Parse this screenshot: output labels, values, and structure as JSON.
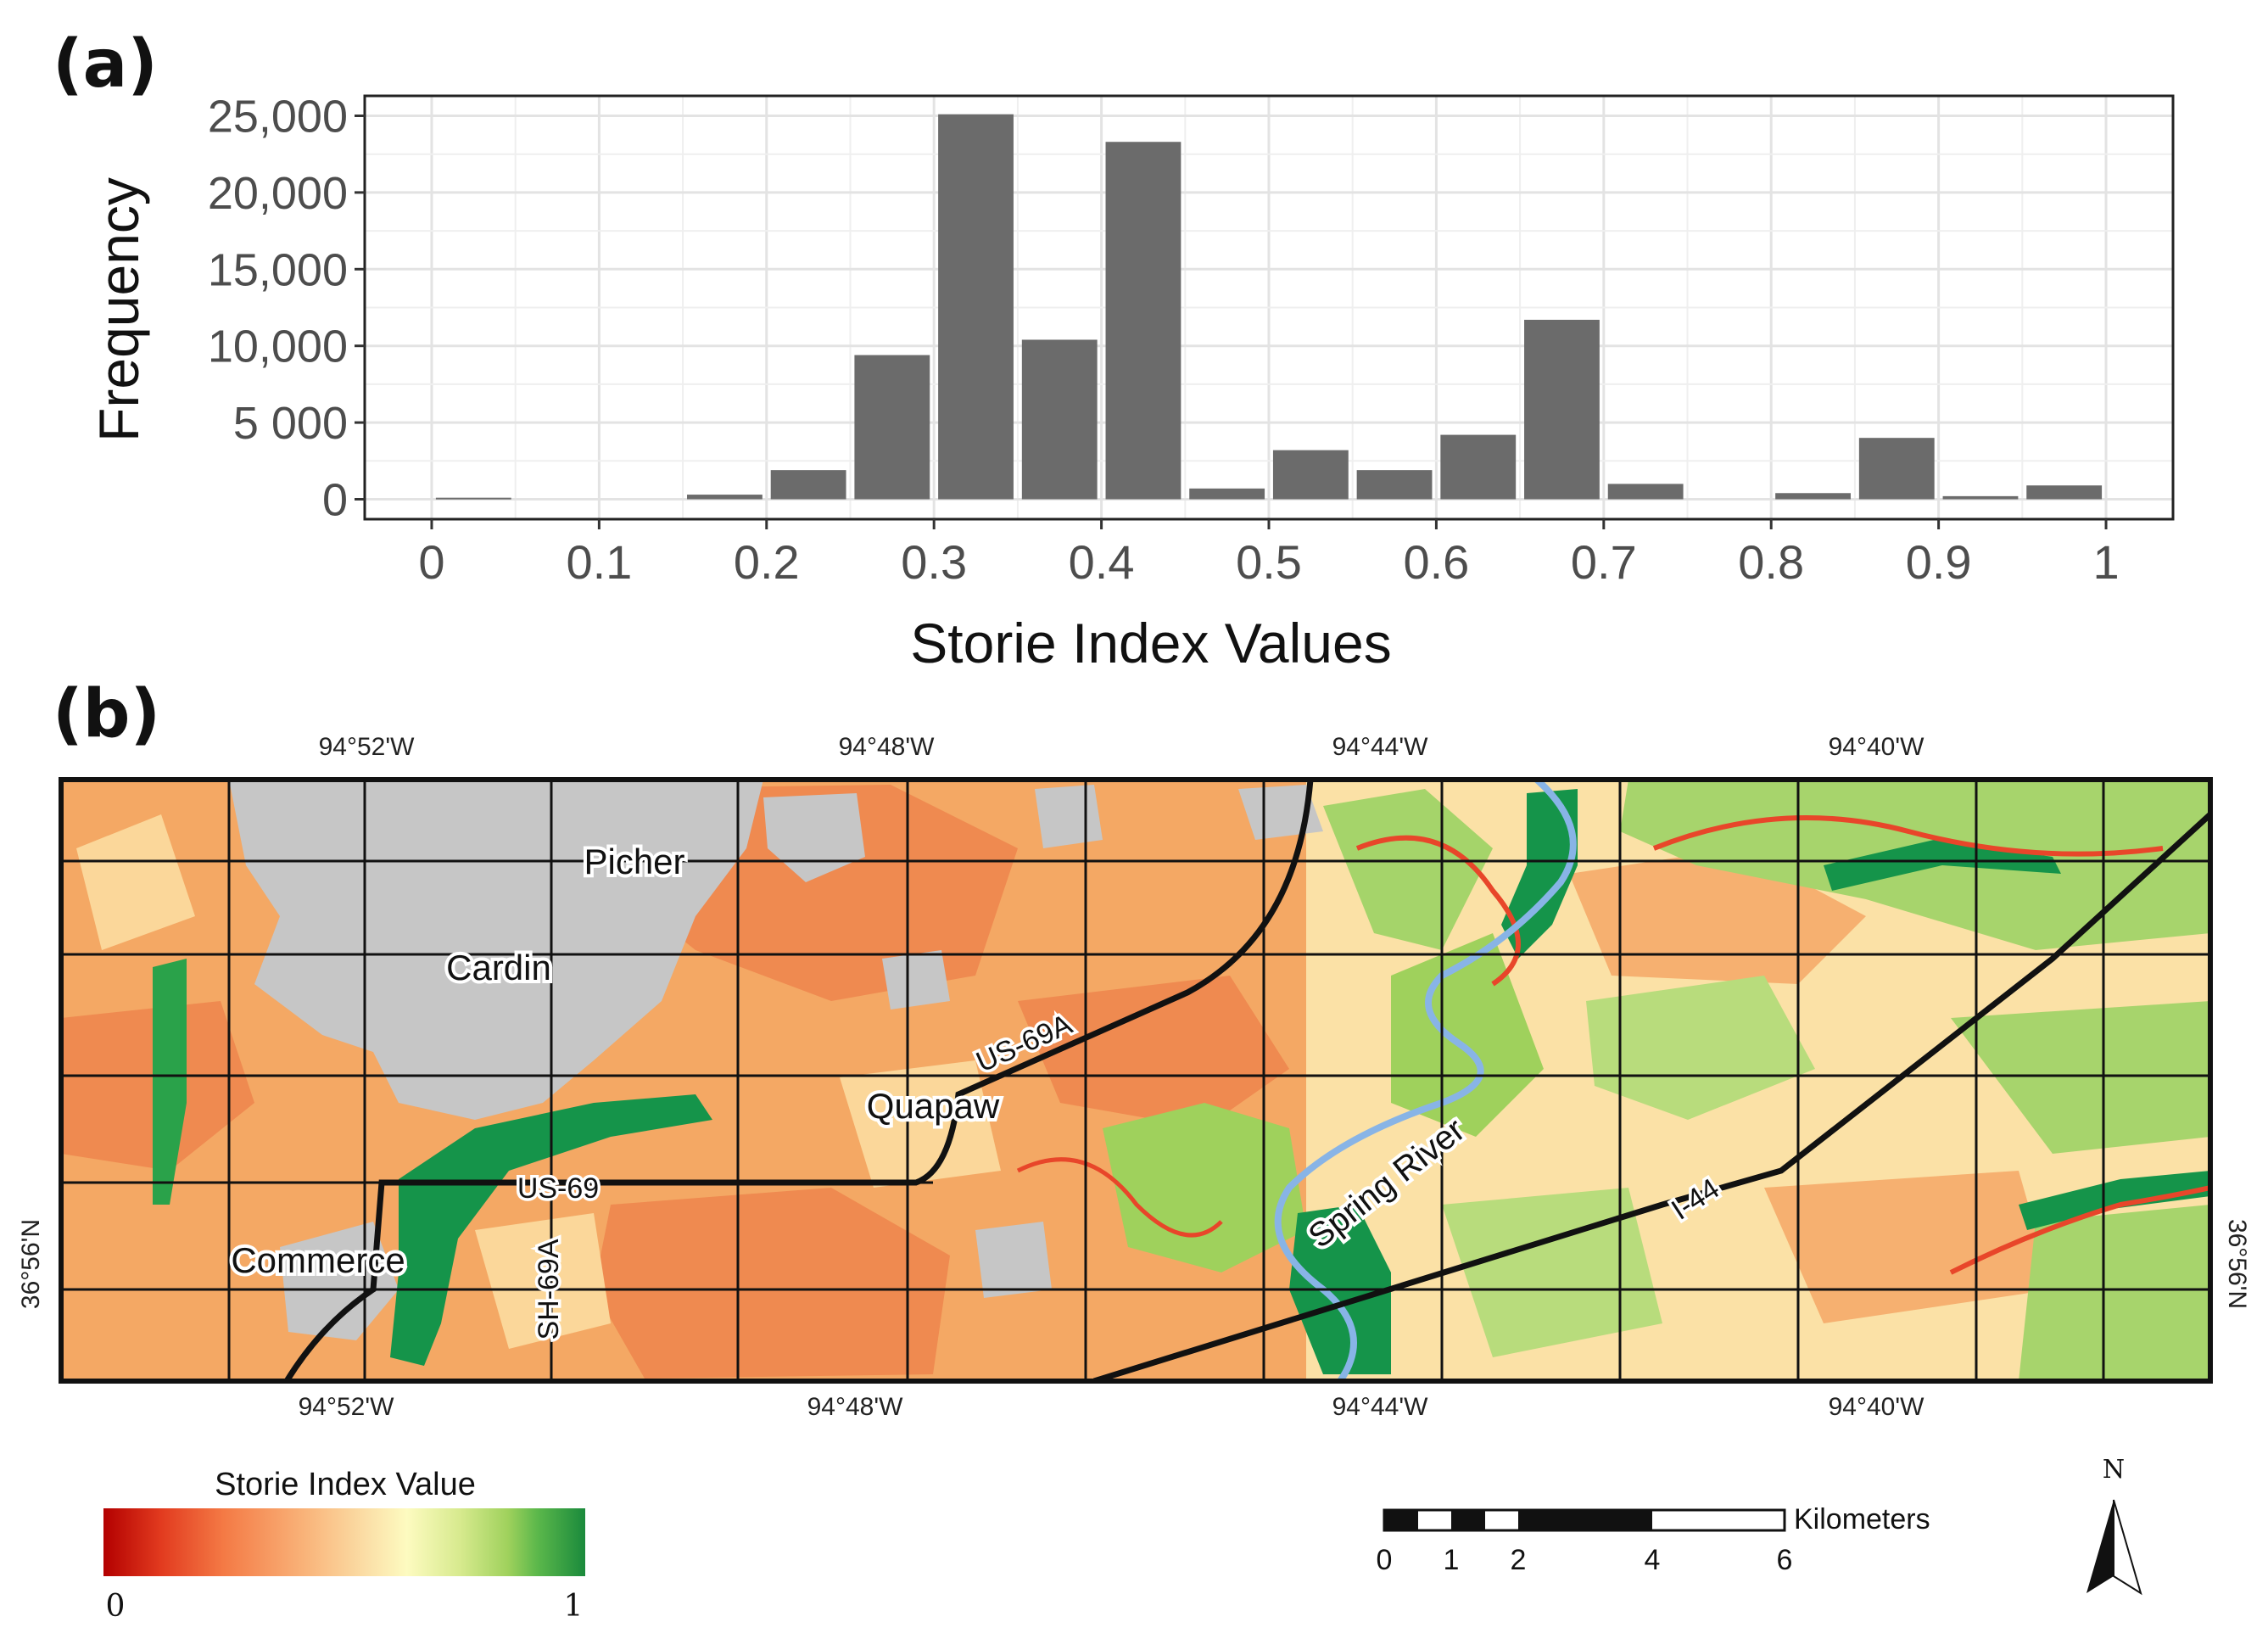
{
  "panels": {
    "a": "(a)",
    "b": "(b)"
  },
  "chart_data": {
    "type": "bar",
    "xlabel": "Storie Index Values",
    "ylabel": "Frequency",
    "xlim": [
      -0.04,
      1.04
    ],
    "ylim": [
      -1300,
      26300
    ],
    "bar_width": 0.045,
    "x": [
      0.025,
      0.075,
      0.125,
      0.175,
      0.225,
      0.275,
      0.325,
      0.375,
      0.425,
      0.475,
      0.525,
      0.575,
      0.625,
      0.675,
      0.725,
      0.775,
      0.825,
      0.875,
      0.925,
      0.975
    ],
    "values": [
      100,
      0,
      0,
      300,
      1900,
      9400,
      25100,
      10400,
      23300,
      700,
      3200,
      1900,
      4200,
      11700,
      1000,
      0,
      400,
      4000,
      200,
      900
    ],
    "xticks": [
      0,
      0.1,
      0.2,
      0.3,
      0.4,
      0.5,
      0.6,
      0.7,
      0.8,
      0.9,
      1
    ],
    "xtick_labels": [
      "0",
      "0.1",
      "0.2",
      "0.3",
      "0.4",
      "0.5",
      "0.6",
      "0.7",
      "0.8",
      "0.9",
      "1"
    ],
    "yticks": [
      0,
      5000,
      10000,
      15000,
      20000,
      25000
    ],
    "ytick_labels": [
      "0",
      "5 000",
      "10,000",
      "15,000",
      "20,000",
      "25,000"
    ],
    "grid": true,
    "bar_color": "#6b6b6b"
  },
  "map": {
    "lon_labels": [
      "94°52'W",
      "94°48'W",
      "94°44'W",
      "94°40'W"
    ],
    "lat_label": "36°56'N",
    "towns": [
      "Picher",
      "Cardin",
      "Quapaw",
      "Commerce"
    ],
    "roads": [
      "US-69A",
      "US-69",
      "SH-69A",
      "I-44"
    ],
    "river": "Spring River",
    "legend": {
      "title": "Storie Index Value",
      "min_label": "0",
      "max_label": "1",
      "colors": [
        "#b30000",
        "#e23b1f",
        "#f47a45",
        "#f9b47a",
        "#fbe0a8",
        "#fdfbc0",
        "#d7ea8e",
        "#9fd15c",
        "#5cb84b",
        "#1a8a3c"
      ]
    },
    "scale": {
      "unit": "Kilometers",
      "ticks": [
        "0",
        "1",
        "2",
        "4",
        "6"
      ]
    },
    "north": "N",
    "colors": {
      "urban": "#c6c6c6",
      "orange": "#f4a864",
      "deep_orange": "#ef8a50",
      "pale": "#fbe1a6",
      "green": "#8fcf5c",
      "dark_green": "#15944a",
      "red": "#e8462a",
      "river": "#88b4e6"
    }
  }
}
